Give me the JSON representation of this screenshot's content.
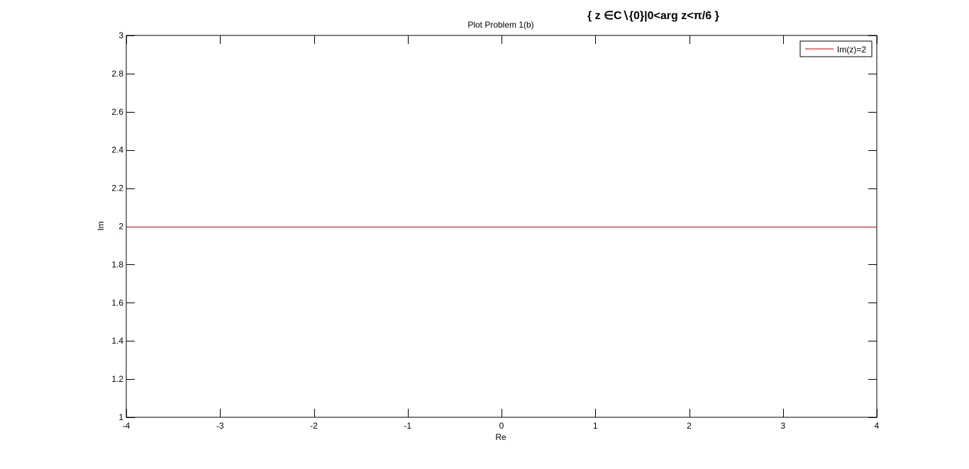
{
  "annotation": "{ z ∈C∖{0}|0<arg z<π/6 }",
  "chart_data": {
    "type": "line",
    "title": "Plot Problem 1(b)",
    "xlabel": "Re",
    "ylabel": "Im",
    "xlim": [
      -4,
      4
    ],
    "ylim": [
      1,
      3
    ],
    "x_ticks": [
      -4,
      -3,
      -2,
      -1,
      0,
      1,
      2,
      3,
      4
    ],
    "x_tick_labels": [
      "-4",
      "-3",
      "-2",
      "-1",
      "0",
      "1",
      "2",
      "3",
      "4"
    ],
    "y_ticks": [
      1,
      1.2,
      1.4,
      1.6,
      1.8,
      2,
      2.2,
      2.4,
      2.6,
      2.8,
      3
    ],
    "y_tick_labels": [
      "1",
      "1.2",
      "1.4",
      "1.6",
      "1.8",
      "2",
      "2.2",
      "2.4",
      "2.6",
      "2.8",
      "3"
    ],
    "grid": false,
    "legend_position": "top-right",
    "series": [
      {
        "name": "Im(z)=2",
        "color": "#cc0000",
        "x": [
          -4,
          4
        ],
        "y": [
          2,
          2
        ]
      }
    ]
  }
}
